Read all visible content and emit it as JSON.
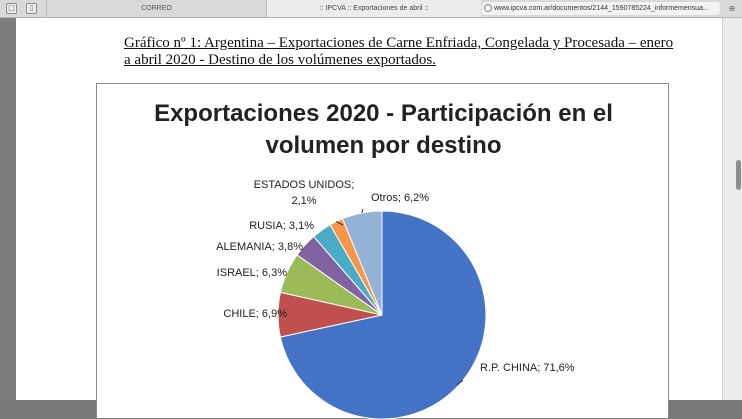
{
  "browser": {
    "tabs": [
      {
        "label": "",
        "icon": "window-icon"
      },
      {
        "label": "",
        "icon": "sidebar-icon"
      },
      {
        "label": "CORREO"
      },
      {
        "label": ":: IPCVA :: Exportaciones de abril ::"
      }
    ],
    "address": "www.ipcva.com.ar/documentos/2144_1590785224_informemensua..."
  },
  "document": {
    "caption_line1": "Gráfico nº 1: Argentina – Exportaciones de Carne Enfriada, Congelada y Procesada – enero",
    "caption_line2": "a abril 2020 - Destino de los volúmenes exportados."
  },
  "chart_data": {
    "type": "pie",
    "title_line1": "Exportaciones 2020 - Participación en el",
    "title_line2": "volumen por destino",
    "slices": [
      {
        "label": "R.P. CHINA; 71,6%",
        "name": "R.P. CHINA",
        "value": 71.6,
        "color": "#4472c4"
      },
      {
        "label": "CHILE; 6,9%",
        "name": "CHILE",
        "value": 6.9,
        "color": "#c0504d"
      },
      {
        "label": "ISRAEL; 6,3%",
        "name": "ISRAEL",
        "value": 6.3,
        "color": "#9bbb59"
      },
      {
        "label": "ALEMANIA; 3,8%",
        "name": "ALEMANIA",
        "value": 3.8,
        "color": "#8064a2"
      },
      {
        "label": "RUSIA; 3,1%",
        "name": "RUSIA",
        "value": 3.1,
        "color": "#4bacc6"
      },
      {
        "label_line1": "ESTADOS UNIDOS;",
        "label_line2": "2,1%",
        "name": "ESTADOS UNIDOS",
        "value": 2.1,
        "color": "#f79646"
      },
      {
        "label": "Otros; 6,2%",
        "name": "Otros",
        "value": 6.2,
        "color": "#95b3d7"
      }
    ]
  }
}
